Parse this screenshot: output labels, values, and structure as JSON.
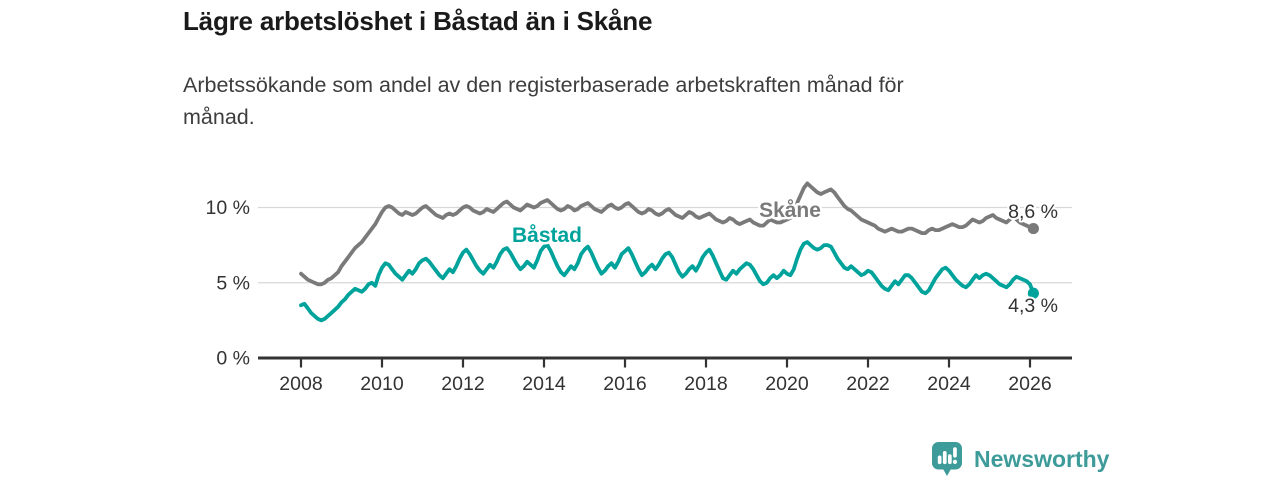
{
  "header": {
    "title": "Lägre arbetslöshet i Båstad än i Skåne",
    "subtitle_line1": "Arbetssökande som andel av den registerbaserade arbetskraften månad för",
    "subtitle_line2": "månad."
  },
  "footer": {
    "brand": "Newsworthy",
    "logo_color": "#3d9b99"
  },
  "chart_data": {
    "type": "line",
    "title": "Lägre arbetslöshet i Båstad än i Skåne",
    "subtitle": "Arbetssökande som andel av den registerbaserade arbetskraften månad för månad.",
    "x_unit": "month",
    "x_start": 2008.0,
    "x_ticks": [
      2008,
      2010,
      2012,
      2014,
      2016,
      2018,
      2020,
      2022,
      2024,
      2026
    ],
    "y_ticks": [
      {
        "value": 10,
        "label": "10 %"
      },
      {
        "value": 5,
        "label": "5 %"
      },
      {
        "value": 0,
        "label": "0 %"
      }
    ],
    "ylim": [
      0,
      12.5
    ],
    "grid": true,
    "grid_color": "#d9d9d9",
    "axis_color": "#333333",
    "legend_position": "inline-labels",
    "series": [
      {
        "name": "Skåne",
        "color": "#7a7a7a",
        "end_label": "8,6 %",
        "end_value": 8.6,
        "values": [
          5.6,
          5.4,
          5.2,
          5.1,
          5.0,
          4.9,
          4.9,
          5.0,
          5.2,
          5.3,
          5.5,
          5.7,
          6.1,
          6.4,
          6.7,
          7.0,
          7.3,
          7.5,
          7.7,
          8.0,
          8.3,
          8.6,
          8.9,
          9.3,
          9.7,
          10.0,
          10.1,
          10.0,
          9.8,
          9.6,
          9.5,
          9.7,
          9.6,
          9.5,
          9.6,
          9.8,
          10.0,
          10.1,
          9.9,
          9.7,
          9.5,
          9.4,
          9.3,
          9.5,
          9.6,
          9.5,
          9.6,
          9.8,
          10.0,
          10.1,
          10.0,
          9.8,
          9.7,
          9.6,
          9.7,
          9.9,
          9.8,
          9.7,
          9.9,
          10.1,
          10.3,
          10.4,
          10.2,
          10.0,
          9.9,
          9.8,
          10.0,
          10.2,
          10.1,
          10.0,
          10.1,
          10.3,
          10.4,
          10.5,
          10.3,
          10.1,
          9.9,
          9.8,
          9.9,
          10.1,
          10.0,
          9.8,
          9.9,
          10.1,
          10.2,
          10.3,
          10.1,
          9.9,
          9.8,
          9.7,
          9.9,
          10.1,
          10.2,
          10.0,
          9.9,
          10.0,
          10.2,
          10.3,
          10.1,
          9.9,
          9.7,
          9.6,
          9.7,
          9.9,
          9.8,
          9.6,
          9.5,
          9.6,
          9.8,
          9.9,
          9.7,
          9.5,
          9.4,
          9.3,
          9.5,
          9.7,
          9.6,
          9.4,
          9.3,
          9.4,
          9.5,
          9.6,
          9.4,
          9.2,
          9.1,
          9.0,
          9.1,
          9.3,
          9.2,
          9.0,
          8.9,
          9.0,
          9.1,
          9.2,
          9.0,
          8.9,
          8.8,
          8.8,
          9.0,
          9.2,
          9.1,
          9.0,
          9.0,
          9.1,
          9.2,
          9.3,
          9.6,
          10.3,
          10.8,
          11.3,
          11.6,
          11.4,
          11.2,
          11.0,
          10.9,
          11.0,
          11.1,
          11.2,
          11.0,
          10.7,
          10.4,
          10.1,
          9.9,
          9.8,
          9.6,
          9.4,
          9.2,
          9.1,
          9.0,
          8.9,
          8.8,
          8.6,
          8.5,
          8.4,
          8.5,
          8.6,
          8.5,
          8.4,
          8.4,
          8.5,
          8.6,
          8.6,
          8.5,
          8.4,
          8.3,
          8.3,
          8.5,
          8.6,
          8.5,
          8.5,
          8.6,
          8.7,
          8.8,
          8.9,
          8.8,
          8.7,
          8.7,
          8.8,
          9.0,
          9.2,
          9.1,
          9.0,
          9.1,
          9.3,
          9.4,
          9.5,
          9.3,
          9.2,
          9.1,
          9.0,
          9.2,
          9.4,
          9.2,
          9.0,
          8.9,
          8.8,
          8.7,
          8.6
        ]
      },
      {
        "name": "Båstad",
        "color": "#00a39b",
        "end_label": "4,3 %",
        "end_value": 4.3,
        "values": [
          3.5,
          3.6,
          3.3,
          3.0,
          2.8,
          2.6,
          2.5,
          2.6,
          2.8,
          3.0,
          3.2,
          3.4,
          3.7,
          3.9,
          4.2,
          4.4,
          4.6,
          4.5,
          4.4,
          4.6,
          4.9,
          5.0,
          4.8,
          5.5,
          6.0,
          6.3,
          6.2,
          5.9,
          5.6,
          5.4,
          5.2,
          5.5,
          5.8,
          5.6,
          5.9,
          6.3,
          6.5,
          6.6,
          6.4,
          6.1,
          5.8,
          5.5,
          5.3,
          5.6,
          5.9,
          5.7,
          6.1,
          6.6,
          7.0,
          7.2,
          6.9,
          6.5,
          6.1,
          5.8,
          5.6,
          5.9,
          6.2,
          6.0,
          6.4,
          6.9,
          7.2,
          7.3,
          7.0,
          6.6,
          6.2,
          5.9,
          6.1,
          6.4,
          6.2,
          6.0,
          6.5,
          7.1,
          7.4,
          7.5,
          7.1,
          6.6,
          6.1,
          5.7,
          5.5,
          5.8,
          6.1,
          5.9,
          6.3,
          6.9,
          7.2,
          7.4,
          7.0,
          6.5,
          6.0,
          5.6,
          5.8,
          6.1,
          6.3,
          6.0,
          6.4,
          6.9,
          7.1,
          7.3,
          6.9,
          6.4,
          5.9,
          5.5,
          5.7,
          6.0,
          6.2,
          5.9,
          6.2,
          6.6,
          6.9,
          7.0,
          6.7,
          6.2,
          5.7,
          5.4,
          5.6,
          5.9,
          6.1,
          5.8,
          6.2,
          6.7,
          7.0,
          7.2,
          6.8,
          6.3,
          5.8,
          5.3,
          5.2,
          5.5,
          5.8,
          5.6,
          5.9,
          6.1,
          6.3,
          6.2,
          5.9,
          5.5,
          5.1,
          4.9,
          5.0,
          5.3,
          5.5,
          5.3,
          5.5,
          5.8,
          5.6,
          5.5,
          5.9,
          6.6,
          7.2,
          7.6,
          7.7,
          7.5,
          7.3,
          7.2,
          7.3,
          7.5,
          7.5,
          7.4,
          7.0,
          6.6,
          6.3,
          6.0,
          5.9,
          6.1,
          5.9,
          5.7,
          5.5,
          5.6,
          5.8,
          5.7,
          5.4,
          5.1,
          4.8,
          4.6,
          4.5,
          4.8,
          5.1,
          4.9,
          5.2,
          5.5,
          5.5,
          5.3,
          5.0,
          4.7,
          4.4,
          4.3,
          4.5,
          4.9,
          5.3,
          5.6,
          5.9,
          6.0,
          5.8,
          5.5,
          5.2,
          5.0,
          4.8,
          4.7,
          4.9,
          5.2,
          5.5,
          5.3,
          5.5,
          5.6,
          5.5,
          5.3,
          5.1,
          4.9,
          4.8,
          4.7,
          4.9,
          5.2,
          5.4,
          5.3,
          5.2,
          5.1,
          4.9,
          4.3
        ]
      }
    ]
  }
}
